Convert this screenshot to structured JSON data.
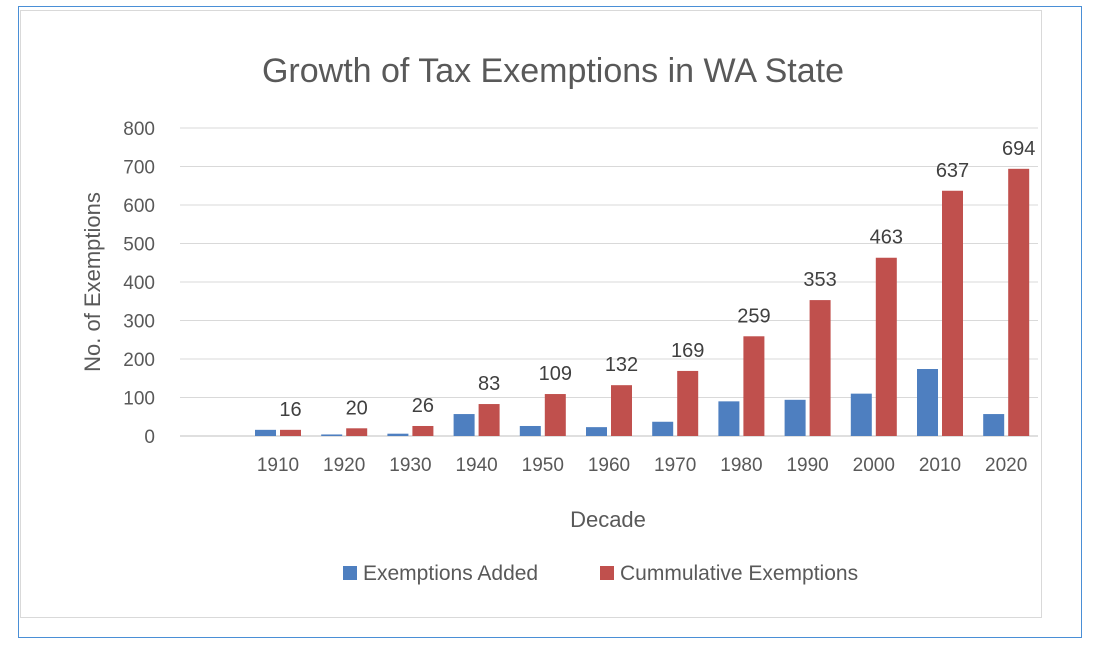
{
  "chart_data": {
    "type": "bar",
    "title": "Growth of Tax Exemptions in WA State",
    "xlabel": "Decade",
    "ylabel": "No. of Exemptions",
    "categories": [
      "1910",
      "1920",
      "1930",
      "1940",
      "1950",
      "1960",
      "1970",
      "1980",
      "1990",
      "2000",
      "2010",
      "2020"
    ],
    "series": [
      {
        "name": "Exemptions Added",
        "color": "#4e7fc0",
        "values": [
          16,
          4,
          6,
          57,
          26,
          23,
          37,
          90,
          94,
          110,
          174,
          57
        ]
      },
      {
        "name": "Cummulative Exemptions",
        "color": "#c0504d",
        "values": [
          16,
          20,
          26,
          83,
          109,
          132,
          169,
          259,
          353,
          463,
          637,
          694
        ]
      }
    ],
    "data_labels": [
      16,
      20,
      26,
      83,
      109,
      132,
      169,
      259,
      353,
      463,
      637,
      694
    ],
    "yticks": [
      0,
      100,
      200,
      300,
      400,
      500,
      600,
      700,
      800
    ],
    "ylim": [
      0,
      800
    ],
    "grid": true,
    "legend": "bottom"
  }
}
